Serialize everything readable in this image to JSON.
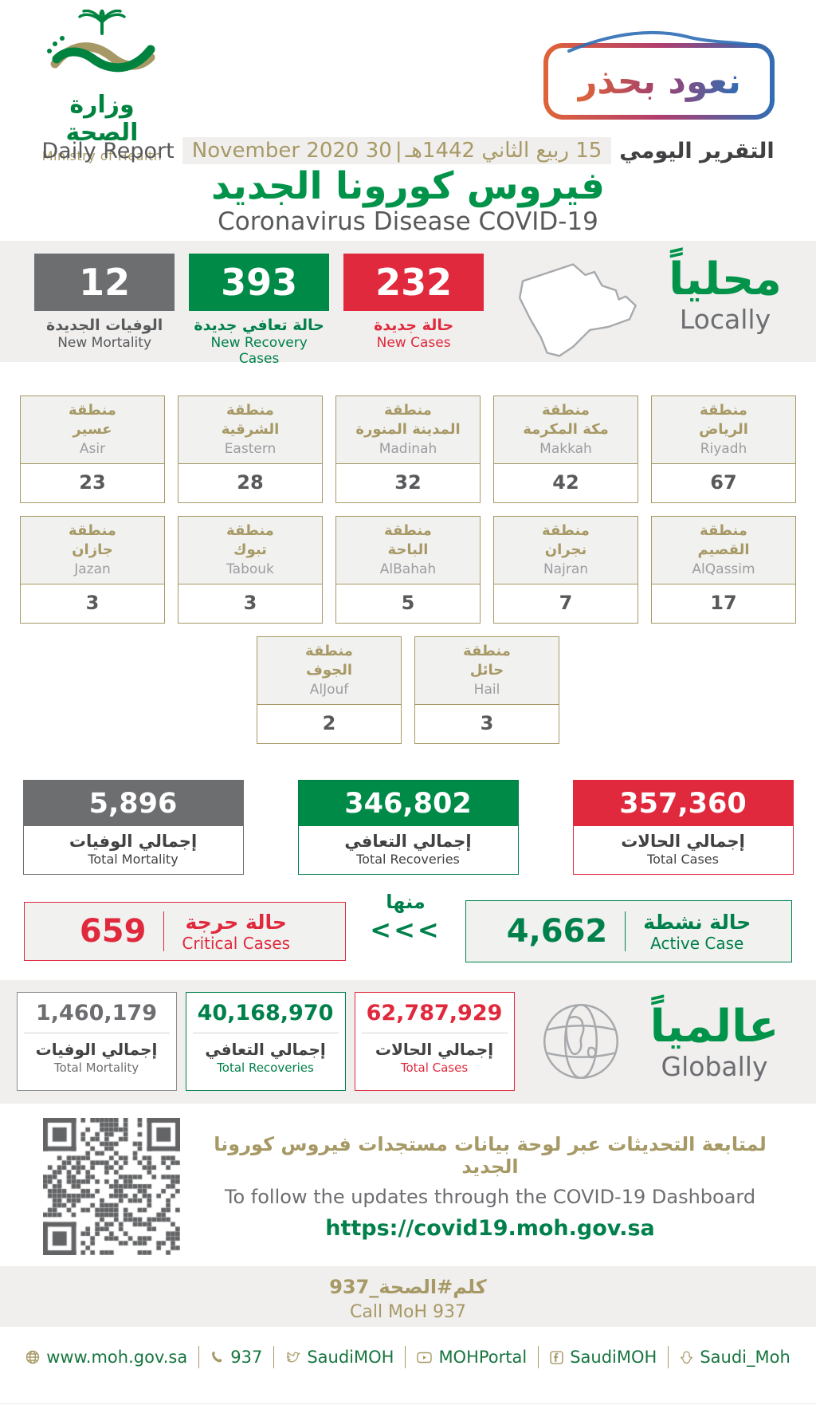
{
  "header": {
    "logo_ar": "وزارة الصحة",
    "logo_en": "Ministry of Health",
    "badge_text": "نعود بحذر",
    "report_label_ar": "التقرير اليومي",
    "report_date_hijri": "15 ربيع الثاني 1442هـ",
    "report_date_sep": "|",
    "report_date_greg": "30 November 2020",
    "report_label_en": "Daily Report",
    "title_ar": "فيروس كورونا الجديد",
    "title_en": "Coronavirus Disease COVID-19"
  },
  "locally": {
    "label_ar": "محلياً",
    "label_en": "Locally",
    "stats": [
      {
        "value": "232",
        "label_ar": "حالة جديدة",
        "label_en": "New Cases",
        "color": "#e0293c"
      },
      {
        "value": "393",
        "label_ar": "حالة تعافي جديدة",
        "label_en": "New Recovery Cases",
        "color": "#008a47"
      },
      {
        "value": "12",
        "label_ar": "الوفيات الجديدة",
        "label_en": "New Mortality",
        "color": "#6d6e70"
      }
    ]
  },
  "regions": {
    "prefix_ar": "منطقة",
    "row1": [
      {
        "name_ar": "الرياض",
        "name_en": "Riyadh",
        "value": "67"
      },
      {
        "name_ar": "مكة المكرمة",
        "name_en": "Makkah",
        "value": "42"
      },
      {
        "name_ar": "المدينة المنورة",
        "name_en": "Madinah",
        "value": "32"
      },
      {
        "name_ar": "الشرقية",
        "name_en": "Eastern",
        "value": "28"
      },
      {
        "name_ar": "عسير",
        "name_en": "Asir",
        "value": "23"
      }
    ],
    "row2": [
      {
        "name_ar": "القصيم",
        "name_en": "AlQassim",
        "value": "17"
      },
      {
        "name_ar": "نجران",
        "name_en": "Najran",
        "value": "7"
      },
      {
        "name_ar": "الباحة",
        "name_en": "AlBahah",
        "value": "5"
      },
      {
        "name_ar": "تبوك",
        "name_en": "Tabouk",
        "value": "3"
      },
      {
        "name_ar": "جازان",
        "name_en": "Jazan",
        "value": "3"
      }
    ],
    "row3": [
      {
        "name_ar": "حائل",
        "name_en": "Hail",
        "value": "3"
      },
      {
        "name_ar": "الجوف",
        "name_en": "AlJouf",
        "value": "2"
      }
    ]
  },
  "totals": [
    {
      "value": "357,360",
      "label_ar": "إجمالي الحالات",
      "label_en": "Total Cases",
      "color": "#e0293c"
    },
    {
      "value": "346,802",
      "label_ar": "إجمالي التعافي",
      "label_en": "Total Recoveries",
      "color": "#008a47"
    },
    {
      "value": "5,896",
      "label_ar": "إجمالي الوفيات",
      "label_en": "Total Mortality",
      "color": "#6d6e70"
    }
  ],
  "breakdown": {
    "of_which_ar": "منها",
    "chevrons": "<<<",
    "active": {
      "value": "4,662",
      "label_ar": "حالة نشطة",
      "label_en": "Active Case",
      "color": "#00804a"
    },
    "critical": {
      "value": "659",
      "label_ar": "حالة حرجة",
      "label_en": "Critical Cases",
      "color": "#e0293c"
    }
  },
  "globally": {
    "label_ar": "عالمياً",
    "label_en": "Globally",
    "stats": [
      {
        "value": "62,787,929",
        "label_ar": "إجمالي الحالات",
        "label_en": "Total Cases",
        "color": "#e0293c"
      },
      {
        "value": "40,168,970",
        "label_ar": "إجمالي التعافي",
        "label_en": "Total Recoveries",
        "color": "#00804a"
      },
      {
        "value": "1,460,179",
        "label_ar": "إجمالي الوفيات",
        "label_en": "Total Mortality",
        "color": "#6d6e71"
      }
    ]
  },
  "dashboard": {
    "text_ar": "لمتابعة التحديثات عبر لوحة بيانات مستجدات فيروس كورونا الجديد",
    "text_en": "To follow the updates through the COVID-19 Dashboard",
    "url": "https://covid19.moh.gov.sa"
  },
  "call_center": {
    "hashtag_ar": "كلم#الصحة_937",
    "text_en": "Call MoH 937"
  },
  "footer": {
    "items": [
      {
        "icon": "globe-icon",
        "text": "www.moh.gov.sa"
      },
      {
        "icon": "phone-icon",
        "text": "937"
      },
      {
        "icon": "twitter-icon",
        "text": "SaudiMOH"
      },
      {
        "icon": "youtube-icon",
        "text": "MOHPortal"
      },
      {
        "icon": "facebook-icon",
        "text": "SaudiMOH"
      },
      {
        "icon": "snapchat-icon",
        "text": "Saudi_Moh"
      }
    ]
  },
  "colors": {
    "green": "#009349",
    "red": "#e0293c",
    "gray": "#6d6e70",
    "tan": "#a79965",
    "dark": "#414042"
  }
}
